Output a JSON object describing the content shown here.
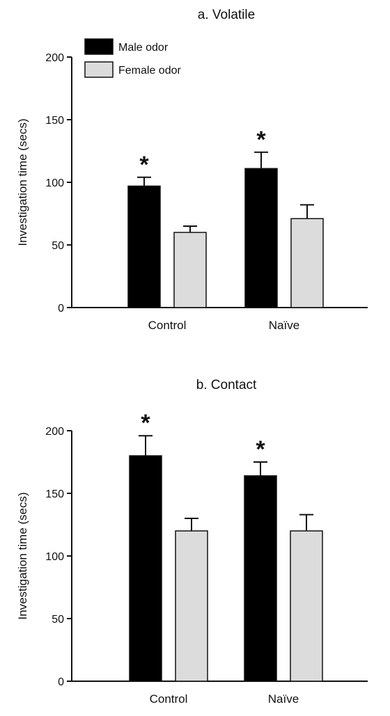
{
  "chart_data": [
    {
      "type": "bar",
      "title": "a. Volatile",
      "ylabel": "Investigation time (secs)",
      "xlabel": "",
      "ylim": [
        0,
        200
      ],
      "yticks": [
        0,
        50,
        100,
        150,
        200
      ],
      "categories": [
        "Control",
        "Naïve"
      ],
      "series": [
        {
          "name": "Male odor",
          "color": "#000000",
          "values": [
            97,
            111
          ],
          "errors": [
            7,
            13
          ],
          "significant": [
            true,
            true
          ]
        },
        {
          "name": "Female odor",
          "color": "#dcdcdc",
          "values": [
            60,
            71
          ],
          "errors": [
            5,
            11
          ],
          "significant": [
            false,
            false
          ]
        }
      ],
      "significance_marker": "*",
      "legend": "top-left",
      "grid": false
    },
    {
      "type": "bar",
      "title": "b. Contact",
      "ylabel": "Investigation time (secs)",
      "xlabel": "",
      "ylim": [
        0,
        200
      ],
      "yticks": [
        0,
        50,
        100,
        150,
        200
      ],
      "categories": [
        "Control",
        "Naïve"
      ],
      "series": [
        {
          "name": "",
          "color": "#000000",
          "values": [
            180,
            164
          ],
          "errors": [
            16,
            11
          ],
          "significant": [
            true,
            true
          ]
        },
        {
          "name": "",
          "color": "#dcdcdc",
          "values": [
            120,
            120
          ],
          "errors": [
            10,
            13
          ],
          "significant": [
            false,
            false
          ]
        }
      ],
      "significance_marker": "*",
      "legend": "none",
      "grid": false
    }
  ]
}
